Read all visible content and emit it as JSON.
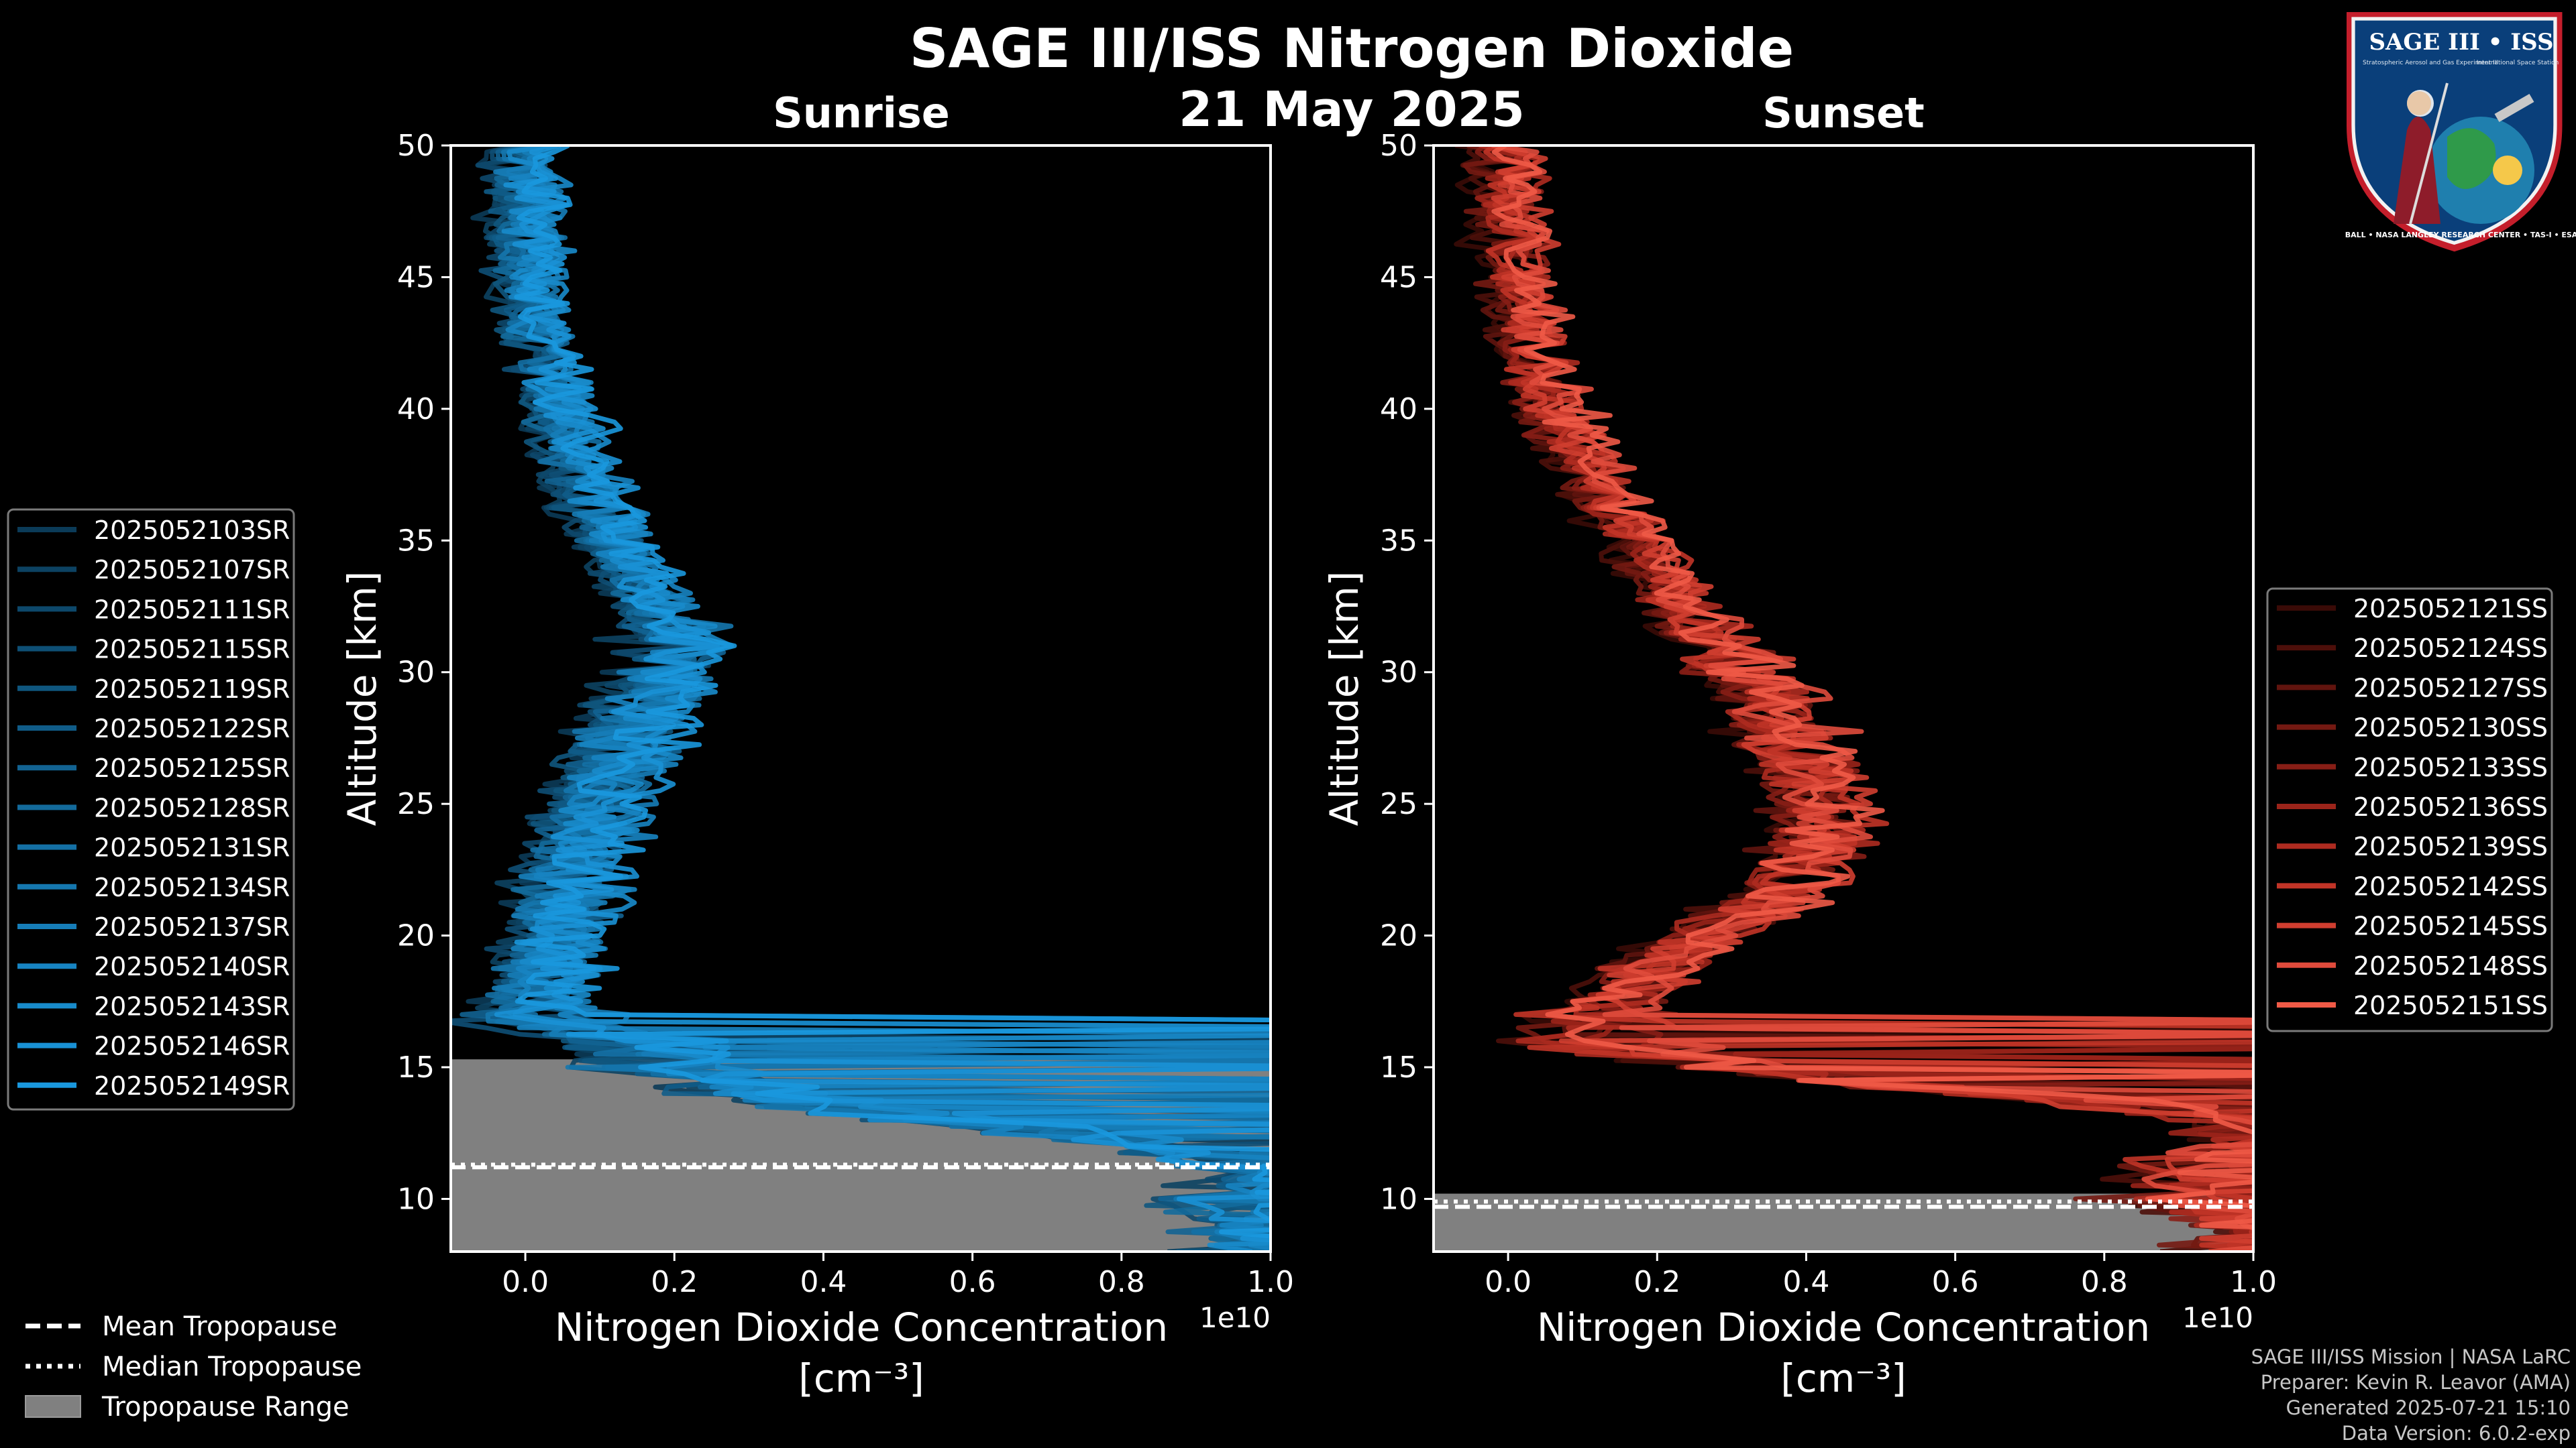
{
  "figure": {
    "title": "SAGE III/ISS Nitrogen Dioxide",
    "date": "21 May 2025",
    "logo": {
      "name": "SAGE III • ISS",
      "subtitle": "Stratospheric Aerosol and Gas Experiment III",
      "platform": "International Space Station",
      "ring_text": "BALL • NASA LANGLEY RESEARCH CENTER • TAS-I • ESA"
    },
    "credits": [
      "SAGE III/ISS Mission | NASA LaRC",
      "Preparer: Kevin R. Leavor (AMA)",
      "Generated 2025-07-21 15:10",
      "Data Version: 6.0.2-exp"
    ],
    "bottom_legend": [
      {
        "label": "Mean Tropopause",
        "style": "dashed"
      },
      {
        "label": "Median Tropopause",
        "style": "dotted"
      },
      {
        "label": "Tropopause Range",
        "style": "patch"
      }
    ],
    "colors": {
      "sunrise": "#1b8fd0",
      "sunset": "#f0604c",
      "tropopause_range": "#808080",
      "background": "#000000"
    }
  },
  "chart_data": [
    {
      "type": "line",
      "title": "Sunrise",
      "xlabel": "Nitrogen Dioxide Concentration",
      "xlabel_units": "[cm⁻³]",
      "offset_text": "1e10",
      "ylabel": "Altitude [km]",
      "xlim": [
        -0.1,
        1.0
      ],
      "ylim": [
        8,
        50
      ],
      "xticks": [
        0.0,
        0.2,
        0.4,
        0.6,
        0.8,
        1.0
      ],
      "xtick_labels": [
        "0.0",
        "0.2",
        "0.4",
        "0.6",
        "0.8",
        "1.0"
      ],
      "yticks": [
        10,
        15,
        20,
        25,
        30,
        35,
        40,
        45,
        50
      ],
      "ytick_labels": [
        "10",
        "15",
        "20",
        "25",
        "30",
        "35",
        "40",
        "45",
        "50"
      ],
      "tropopause": {
        "range": [
          8,
          15.3
        ],
        "mean": 11.2,
        "median": 11.3
      },
      "series_names": [
        "2025052103SR",
        "2025052107SR",
        "2025052111SR",
        "2025052115SR",
        "2025052119SR",
        "2025052122SR",
        "2025052125SR",
        "2025052128SR",
        "2025052131SR",
        "2025052134SR",
        "2025052137SR",
        "2025052140SR",
        "2025052143SR",
        "2025052146SR",
        "2025052149SR"
      ],
      "series_colors": [
        "#0b3b58",
        "#0c4262",
        "#0d486b",
        "#0e4f75",
        "#0f567e",
        "#105c88",
        "#126392",
        "#136a9b",
        "#1470a5",
        "#1577ae",
        "#167db8",
        "#1784c2",
        "#188bcb",
        "#1991d5",
        "#1a98de"
      ],
      "profile": {
        "altitude": [
          50,
          48,
          46,
          44,
          42,
          40,
          38,
          36,
          34,
          32,
          31,
          30,
          29,
          28,
          27,
          26,
          25,
          24,
          23,
          22,
          21,
          20,
          19,
          18,
          17,
          16.5,
          16,
          15.5,
          15,
          14.5,
          14,
          13.5,
          13,
          12.5,
          12,
          11.5,
          11,
          10.5,
          10,
          9.5,
          9,
          8.5,
          8
        ],
        "no2": [
          0.0,
          0.002,
          0.005,
          0.01,
          0.025,
          0.045,
          0.07,
          0.1,
          0.14,
          0.18,
          0.2,
          0.19,
          0.17,
          0.15,
          0.13,
          0.11,
          0.1,
          0.08,
          0.07,
          0.06,
          0.05,
          0.04,
          0.03,
          0.02,
          0.01,
          0.05,
          0.15,
          0.2,
          0.18,
          0.28,
          0.32,
          0.42,
          0.55,
          0.72,
          0.85,
          0.95,
          1.0,
          1.0,
          0.95,
          0.98,
          1.0,
          1.0,
          1.0
        ]
      }
    },
    {
      "type": "line",
      "title": "Sunset",
      "xlabel": "Nitrogen Dioxide Concentration",
      "xlabel_units": "[cm⁻³]",
      "offset_text": "1e10",
      "ylabel": "Altitude [km]",
      "xlim": [
        -0.1,
        1.0
      ],
      "ylim": [
        8,
        50
      ],
      "xticks": [
        0.0,
        0.2,
        0.4,
        0.6,
        0.8,
        1.0
      ],
      "xtick_labels": [
        "0.0",
        "0.2",
        "0.4",
        "0.6",
        "0.8",
        "1.0"
      ],
      "yticks": [
        10,
        15,
        20,
        25,
        30,
        35,
        40,
        45,
        50
      ],
      "ytick_labels": [
        "10",
        "15",
        "20",
        "25",
        "30",
        "35",
        "40",
        "45",
        "50"
      ],
      "tropopause": {
        "range": [
          8,
          10.2
        ],
        "mean": 9.7,
        "median": 9.9
      },
      "series_names": [
        "2025052121SS",
        "2025052124SS",
        "2025052127SS",
        "2025052130SS",
        "2025052133SS",
        "2025052136SS",
        "2025052139SS",
        "2025052142SS",
        "2025052145SS",
        "2025052148SS",
        "2025052151SS"
      ],
      "series_colors": [
        "#3a0b07",
        "#4d0f0a",
        "#61140e",
        "#741912",
        "#871e16",
        "#9b241a",
        "#ae2b20",
        "#c13427",
        "#d03e30",
        "#e04b3c",
        "#f05a47"
      ],
      "profile": {
        "altitude": [
          50,
          48,
          46,
          44,
          42,
          40,
          38,
          36,
          34,
          32,
          31,
          30,
          29,
          28,
          27,
          26,
          25,
          24,
          23,
          22,
          21,
          20,
          19,
          18,
          17,
          16,
          15.5,
          15,
          14.5,
          14,
          13.5,
          13,
          12.5,
          12,
          11.5,
          11,
          10.5,
          10,
          9.5,
          9,
          8.5,
          8
        ],
        "no2": [
          0.0,
          0.005,
          0.01,
          0.02,
          0.035,
          0.06,
          0.1,
          0.15,
          0.2,
          0.25,
          0.29,
          0.32,
          0.35,
          0.37,
          0.39,
          0.41,
          0.42,
          0.42,
          0.41,
          0.38,
          0.33,
          0.27,
          0.21,
          0.16,
          0.12,
          0.1,
          0.2,
          0.3,
          0.45,
          0.65,
          0.85,
          1.0,
          1.0,
          1.0,
          0.95,
          0.9,
          0.9,
          0.9,
          0.95,
          1.0,
          1.0,
          1.0
        ]
      }
    }
  ]
}
